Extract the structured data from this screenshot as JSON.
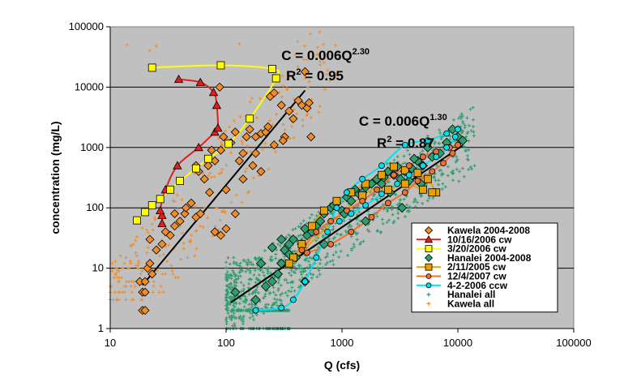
{
  "chart_data": {
    "type": "scatter",
    "title": "",
    "xlabel": "Q (cfs)",
    "ylabel": "concentration (mg/L)",
    "xscale": "log",
    "yscale": "log",
    "xlim": [
      10,
      100000
    ],
    "ylim": [
      1,
      100000
    ],
    "x_ticks": [
      "10",
      "100",
      "1000",
      "10000",
      "100000"
    ],
    "y_ticks": [
      "1",
      "10",
      "100",
      "1000",
      "10000",
      "100000"
    ],
    "grid": "horizontal major lines",
    "plot_background": "#c0c0c0",
    "legend_position": "lower-right",
    "annotations": [
      {
        "text": "C = 0.006Q",
        "sup": "2.30",
        "x": 300,
        "y": 28000
      },
      {
        "text": "R",
        "sup": "2",
        "rest": " = 0.95",
        "x": 330,
        "y": 13000
      },
      {
        "text": "C = 0.006Q",
        "sup": "1.30",
        "x": 1400,
        "y": 2300
      },
      {
        "text": "R",
        "sup": "2",
        "rest": " = 0.87",
        "x": 2000,
        "y": 1000
      }
    ],
    "trendlines": [
      {
        "name": "Kawela fit",
        "color": "#000000",
        "x": [
          19,
          480
        ]
      },
      {
        "name": "Hanalei fit",
        "color": "#000000",
        "x": [
          110,
          11000
        ]
      }
    ],
    "series": [
      {
        "name": "Kawela 2004-2008",
        "marker": "diamond",
        "color": "#f28c28",
        "line": false,
        "points": [
          [
            18,
            6
          ],
          [
            19,
            4
          ],
          [
            20,
            4
          ],
          [
            19,
            2
          ],
          [
            20,
            2
          ],
          [
            21,
            10
          ],
          [
            22,
            12
          ],
          [
            23,
            8
          ],
          [
            20,
            6
          ],
          [
            22,
            30
          ],
          [
            25,
            20
          ],
          [
            28,
            25
          ],
          [
            30,
            40
          ],
          [
            33,
            35
          ],
          [
            36,
            50
          ],
          [
            40,
            60
          ],
          [
            44,
            80
          ],
          [
            50,
            120
          ],
          [
            55,
            70
          ],
          [
            58,
            400
          ],
          [
            65,
            300
          ],
          [
            70,
            500
          ],
          [
            75,
            900
          ],
          [
            80,
            600
          ],
          [
            88,
            10000
          ],
          [
            95,
            1500
          ],
          [
            100,
            200
          ],
          [
            110,
            1200
          ],
          [
            120,
            1800
          ],
          [
            130,
            600
          ],
          [
            140,
            800
          ],
          [
            150,
            1500
          ],
          [
            160,
            2000
          ],
          [
            180,
            1500
          ],
          [
            200,
            1700
          ],
          [
            220,
            1800
          ],
          [
            240,
            7000
          ],
          [
            260,
            8000
          ],
          [
            300,
            5000
          ],
          [
            320,
            1500
          ],
          [
            350,
            4000
          ],
          [
            380,
            3000
          ],
          [
            420,
            6000
          ],
          [
            450,
            5000
          ],
          [
            480,
            18000
          ],
          [
            500,
            4500
          ],
          [
            520,
            5500
          ],
          [
            540,
            1500
          ],
          [
            80,
            40
          ],
          [
            45,
            100
          ],
          [
            36,
            80
          ],
          [
            60,
            80
          ],
          [
            90,
            35
          ],
          [
            100,
            45
          ],
          [
            260,
            1100
          ],
          [
            310,
            1300
          ],
          [
            72,
            180
          ],
          [
            170,
            500
          ],
          [
            140,
            300
          ],
          [
            90,
            900
          ],
          [
            55,
            500
          ],
          [
            120,
            80
          ],
          [
            200,
            400
          ],
          [
            230,
            2200
          ],
          [
            180,
            800
          ]
        ]
      },
      {
        "name": "10/16/2006 cw",
        "marker": "triangle",
        "color": "#e02020",
        "line": true,
        "points": [
          [
            28,
            55
          ],
          [
            28,
            75
          ],
          [
            27,
            90
          ],
          [
            30,
            200
          ],
          [
            38,
            500
          ],
          [
            58,
            1000
          ],
          [
            80,
            1800
          ],
          [
            85,
            2100
          ],
          [
            83,
            5000
          ],
          [
            78,
            8200
          ],
          [
            60,
            12000
          ],
          [
            39,
            13500
          ]
        ]
      },
      {
        "name": "3/20/2006 cw",
        "marker": "square",
        "color": "#ffff00",
        "line": true,
        "points": [
          [
            23,
            21000
          ],
          [
            90,
            23000
          ],
          [
            250,
            20000
          ],
          [
            270,
            14000
          ],
          [
            160,
            3000
          ],
          [
            105,
            1150
          ],
          [
            70,
            650
          ],
          [
            55,
            450
          ],
          [
            40,
            280
          ],
          [
            33,
            200
          ],
          [
            27,
            140
          ],
          [
            23,
            110
          ],
          [
            20,
            85
          ],
          [
            17,
            62
          ]
        ]
      },
      {
        "name": "Hanalei 2004-2008",
        "marker": "diamond",
        "color": "#2e9e6e",
        "line": false,
        "points": [
          [
            120,
            4
          ],
          [
            180,
            3
          ],
          [
            220,
            5
          ],
          [
            250,
            6
          ],
          [
            280,
            8
          ],
          [
            300,
            12
          ],
          [
            320,
            20
          ],
          [
            350,
            25
          ],
          [
            380,
            30
          ],
          [
            400,
            15
          ],
          [
            450,
            25
          ],
          [
            480,
            6
          ],
          [
            500,
            35
          ],
          [
            550,
            40
          ],
          [
            600,
            50
          ],
          [
            650,
            60
          ],
          [
            700,
            80
          ],
          [
            800,
            100
          ],
          [
            900,
            120
          ],
          [
            1000,
            90
          ],
          [
            1100,
            150
          ],
          [
            1200,
            130
          ],
          [
            1300,
            200
          ],
          [
            1400,
            170
          ],
          [
            1500,
            180
          ],
          [
            1600,
            60
          ],
          [
            1800,
            250
          ],
          [
            2000,
            300
          ],
          [
            2200,
            250
          ],
          [
            2500,
            400
          ],
          [
            2800,
            350
          ],
          [
            3000,
            480
          ],
          [
            3200,
            300
          ],
          [
            3500,
            400
          ],
          [
            3800,
            280
          ],
          [
            4000,
            450
          ],
          [
            4500,
            600
          ],
          [
            5000,
            500
          ],
          [
            5500,
            1000
          ],
          [
            6000,
            700
          ],
          [
            7000,
            800
          ],
          [
            8000,
            1200
          ],
          [
            9000,
            2000
          ],
          [
            10000,
            1500
          ],
          [
            11000,
            1300
          ],
          [
            350,
            17
          ],
          [
            700,
            25
          ],
          [
            850,
            110
          ],
          [
            1050,
            80
          ],
          [
            1600,
            220
          ],
          [
            2300,
            320
          ],
          [
            4200,
            650
          ],
          [
            3300,
            100
          ],
          [
            4800,
            250
          ],
          [
            2600,
            180
          ],
          [
            300,
            30
          ],
          [
            200,
            12
          ],
          [
            250,
            22
          ],
          [
            480,
            45
          ]
        ]
      },
      {
        "name": "2/11/2005 cw",
        "marker": "square",
        "color": "#e8a000",
        "line": true,
        "points": [
          [
            6500,
            180
          ],
          [
            5500,
            300
          ],
          [
            4500,
            380
          ],
          [
            3500,
            420
          ],
          [
            2800,
            480
          ],
          [
            2200,
            350
          ],
          [
            1600,
            250
          ],
          [
            1200,
            180
          ],
          [
            900,
            130
          ],
          [
            700,
            90
          ],
          [
            550,
            50
          ],
          [
            450,
            25
          ],
          [
            380,
            15
          ],
          [
            350,
            12
          ],
          [
            1500,
            160
          ],
          [
            2500,
            200
          ],
          [
            3500,
            250
          ],
          [
            5000,
            200
          ],
          [
            6000,
            180
          ]
        ]
      },
      {
        "name": "12/4/2007 cw",
        "marker": "circle",
        "color": "#f07030",
        "line": true,
        "points": [
          [
            450,
            20
          ],
          [
            600,
            40
          ],
          [
            800,
            60
          ],
          [
            1100,
            90
          ],
          [
            1500,
            130
          ],
          [
            2000,
            200
          ],
          [
            2800,
            350
          ],
          [
            3800,
            500
          ],
          [
            5000,
            700
          ],
          [
            6500,
            850
          ],
          [
            8500,
            1000
          ],
          [
            10000,
            1100
          ],
          [
            9000,
            800
          ],
          [
            7500,
            550
          ],
          [
            6000,
            400
          ],
          [
            4500,
            280
          ],
          [
            3500,
            180
          ],
          [
            2500,
            120
          ],
          [
            1800,
            70
          ],
          [
            1200,
            40
          ],
          [
            800,
            25
          ],
          [
            500,
            18
          ]
        ]
      },
      {
        "name": "4-2-2006 ccw",
        "marker": "circle",
        "color": "#00e0f0",
        "line": true,
        "points": [
          [
            180,
            2
          ],
          [
            300,
            2.2
          ],
          [
            380,
            3
          ],
          [
            480,
            6
          ],
          [
            600,
            15
          ],
          [
            750,
            40
          ],
          [
            900,
            100
          ],
          [
            1100,
            180
          ],
          [
            1500,
            300
          ],
          [
            2200,
            500
          ],
          [
            3500,
            1100
          ],
          [
            5500,
            1300
          ],
          [
            8000,
            1700
          ],
          [
            10000,
            2000
          ],
          [
            9500,
            1500
          ],
          [
            8000,
            1000
          ],
          [
            6500,
            700
          ],
          [
            5000,
            500
          ],
          [
            3800,
            350
          ],
          [
            3000,
            250
          ],
          [
            2200,
            170
          ],
          [
            1600,
            110
          ],
          [
            1200,
            80
          ],
          [
            950,
            60
          ]
        ]
      },
      {
        "name": "Hanalei all",
        "marker": "plus",
        "color": "#2e9e6e",
        "line": false,
        "generated": "dense cloud",
        "points": []
      },
      {
        "name": "Kawela all",
        "marker": "plus",
        "color": "#f28c28",
        "line": false,
        "generated": "dense cloud",
        "points": []
      }
    ]
  }
}
